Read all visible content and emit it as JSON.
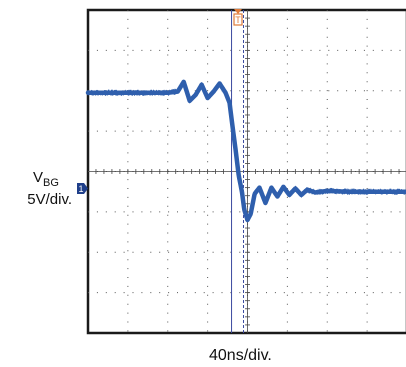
{
  "chart_data": {
    "type": "line",
    "title": "",
    "xlabel": "40ns/div.",
    "ylabel": "",
    "grid": true,
    "divisions": {
      "x": 8,
      "y": 8
    },
    "xlim": [
      0,
      8
    ],
    "ylim": [
      -4,
      4
    ],
    "channel": {
      "name_base": "V",
      "name_subscript": "BG",
      "scale": "5V/div.",
      "ground_marker": "1"
    },
    "trigger_marker": "T",
    "cursors_x": [
      3.6,
      3.9
    ],
    "series": [
      {
        "color": "#2f5fad",
        "x": [
          0,
          1.0,
          2.0,
          2.25,
          2.4,
          2.55,
          2.7,
          2.85,
          3.0,
          3.15,
          3.3,
          3.45,
          3.55,
          3.62,
          3.7,
          3.78,
          3.86,
          3.92,
          4.0,
          4.08,
          4.18,
          4.3,
          4.45,
          4.6,
          4.75,
          4.9,
          5.05,
          5.2,
          5.35,
          5.5,
          5.7,
          6.0,
          6.5,
          7.0,
          7.5,
          8.0
        ],
        "y": [
          1.95,
          1.95,
          1.95,
          1.98,
          2.22,
          1.75,
          1.9,
          2.15,
          1.82,
          1.98,
          2.18,
          1.95,
          1.7,
          1.15,
          0.55,
          -0.1,
          -0.5,
          -0.95,
          -1.2,
          -1.05,
          -0.55,
          -0.4,
          -0.78,
          -0.4,
          -0.62,
          -0.38,
          -0.58,
          -0.42,
          -0.58,
          -0.45,
          -0.52,
          -0.48,
          -0.5,
          -0.5,
          -0.5,
          -0.5
        ]
      }
    ]
  }
}
